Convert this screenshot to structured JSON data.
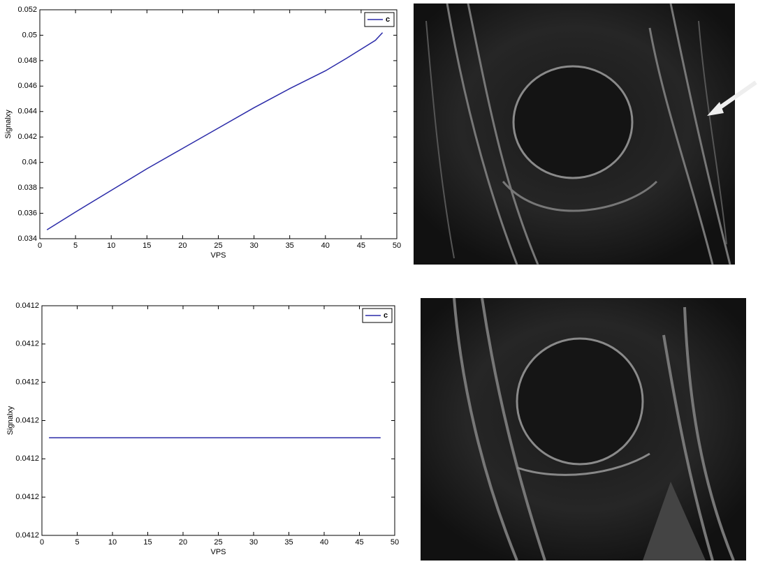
{
  "chart_data": [
    {
      "type": "line",
      "xlabel": "VPS",
      "ylabel": "Signalxy",
      "x": [
        1,
        5,
        10,
        15,
        20,
        25,
        30,
        35,
        40,
        43,
        45,
        47,
        48
      ],
      "series": [
        {
          "name": "c",
          "color": "#2a2aa8",
          "values": [
            0.0347,
            0.0361,
            0.0378,
            0.0395,
            0.0411,
            0.0427,
            0.0443,
            0.0458,
            0.0472,
            0.0482,
            0.0489,
            0.0496,
            0.0502
          ]
        }
      ],
      "xlim": [
        0,
        50
      ],
      "xticks": [
        0,
        5,
        10,
        15,
        20,
        25,
        30,
        35,
        40,
        45,
        50
      ],
      "ylim": [
        0.034,
        0.052
      ],
      "yticks": [
        0.034,
        0.036,
        0.038,
        0.04,
        0.042,
        0.044,
        0.046,
        0.048,
        0.05,
        0.052
      ],
      "legend": "upper right"
    },
    {
      "type": "line",
      "xlabel": "VPS",
      "ylabel": "Signalxy",
      "x": [
        1,
        48
      ],
      "series": [
        {
          "name": "c",
          "color": "#2a2aa8",
          "values": [
            0.04119955,
            0.04119955
          ]
        }
      ],
      "xlim": [
        0,
        50
      ],
      "xticks": [
        0,
        5,
        10,
        15,
        20,
        25,
        30,
        35,
        40,
        45,
        50
      ],
      "ylim": [
        0.041197,
        0.041203
      ],
      "yticks": [
        {
          "value": 0.041197,
          "label": "0.0412"
        },
        {
          "value": 0.041198,
          "label": "0.0412"
        },
        {
          "value": 0.041199,
          "label": "0.0412"
        },
        {
          "value": 0.0412,
          "label": "0.0412"
        },
        {
          "value": 0.041201,
          "label": "0.0412"
        },
        {
          "value": 0.041202,
          "label": "0.0412"
        },
        {
          "value": 0.041203,
          "label": "0.0412"
        }
      ],
      "legend": "upper right"
    }
  ]
}
